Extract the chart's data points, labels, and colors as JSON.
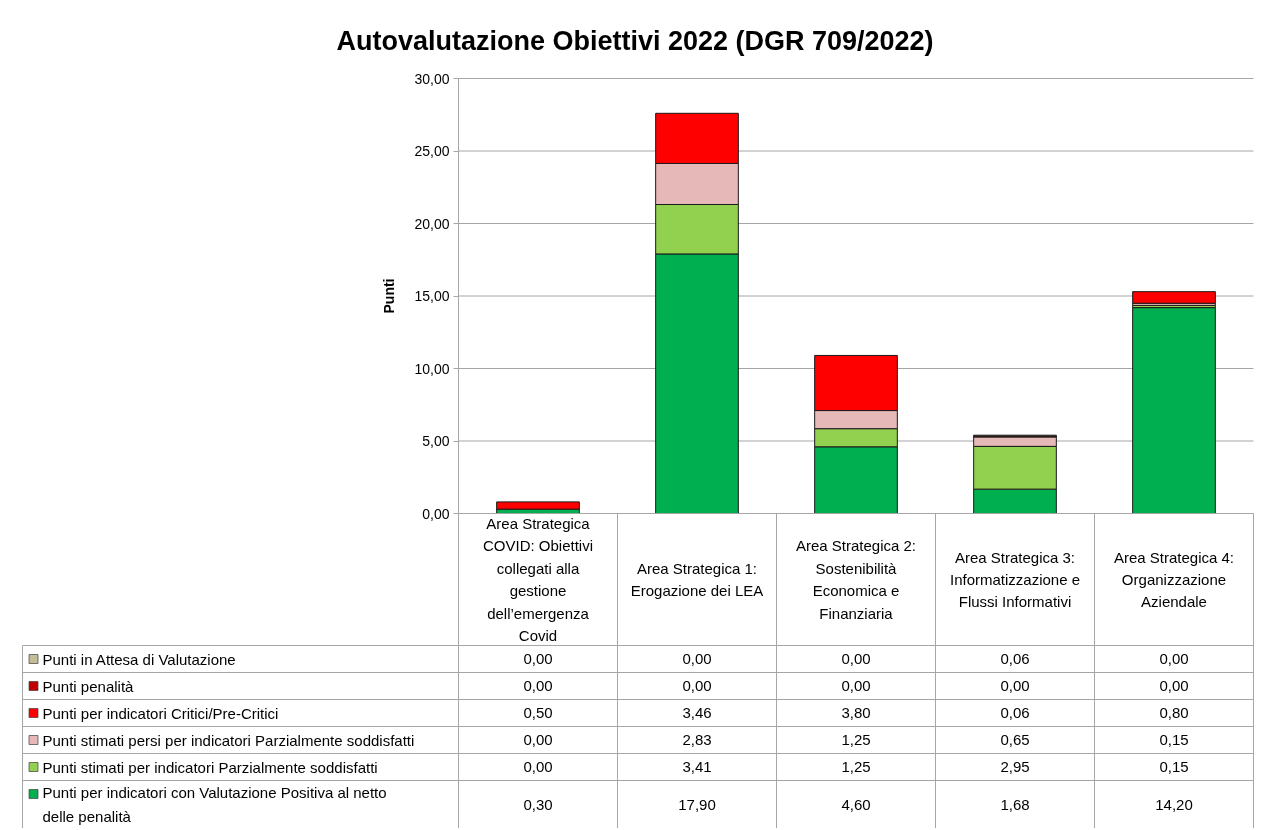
{
  "chart_data": {
    "type": "bar",
    "stacked": true,
    "title": "Autovalutazione Obiettivi 2022 (DGR 709/2022)",
    "ylabel": "Punti",
    "categories": [
      "Area Strategica COVID: Obiettivi collegati alla gestione dell’emergenza Covid",
      "Area Strategica 1: Erogazione dei LEA",
      "Area Strategica 2: Sostenibilità Economica e Finanziaria",
      "Area Strategica 3: Informatizzazione e Flussi Informativi",
      "Area Strategica 4: Organizzazione Aziendale"
    ],
    "ylim": [
      0,
      30
    ],
    "yticks": [
      {
        "value": 0,
        "label": "0,00"
      },
      {
        "value": 5,
        "label": "5,00"
      },
      {
        "value": 10,
        "label": "10,00"
      },
      {
        "value": 15,
        "label": "15,00"
      },
      {
        "value": 20,
        "label": "20,00"
      },
      {
        "value": 25,
        "label": "25,00"
      },
      {
        "value": 30,
        "label": "30,00"
      }
    ],
    "grid": "y",
    "legend": "bottom",
    "series": [
      {
        "name": "Punti per indicatori con Valutazione Positiva al netto delle penalità",
        "color": "#00b050",
        "values": [
          0.3,
          17.9,
          4.6,
          1.68,
          14.2
        ],
        "value_labels": [
          "0,30",
          "17,90",
          "4,60",
          "1,68",
          "14,20"
        ]
      },
      {
        "name": "Punti stimati per indicatori Parzialmente soddisfatti",
        "color": "#92d050",
        "values": [
          0,
          3.41,
          1.25,
          2.95,
          0.15
        ],
        "value_labels": [
          "0,00",
          "3,41",
          "1,25",
          "2,95",
          "0,15"
        ]
      },
      {
        "name": "Punti stimati persi per indicatori Parzialmente soddisfatti",
        "color": "#e6b8b7",
        "values": [
          0,
          2.83,
          1.25,
          0.65,
          0.15
        ],
        "value_labels": [
          "0,00",
          "2,83",
          "1,25",
          "0,65",
          "0,15"
        ]
      },
      {
        "name": "Punti per indicatori Critici/Pre-Critici",
        "color": "#ff0000",
        "values": [
          0.5,
          3.46,
          3.8,
          0.06,
          0.8
        ],
        "value_labels": [
          "0,50",
          "3,46",
          "3,80",
          "0,06",
          "0,80"
        ]
      },
      {
        "name": "Punti penalità",
        "color": "#c00000",
        "values": [
          0,
          0,
          0,
          0,
          0
        ],
        "value_labels": [
          "0,00",
          "0,00",
          "0,00",
          "0,00",
          "0,00"
        ]
      },
      {
        "name": "Punti in Attesa di Valutazione",
        "color": "#c4bd97",
        "values": [
          0,
          0,
          0,
          0.06,
          0
        ],
        "value_labels": [
          "0,00",
          "0,00",
          "0,00",
          "0,06",
          "0,00"
        ]
      }
    ]
  }
}
